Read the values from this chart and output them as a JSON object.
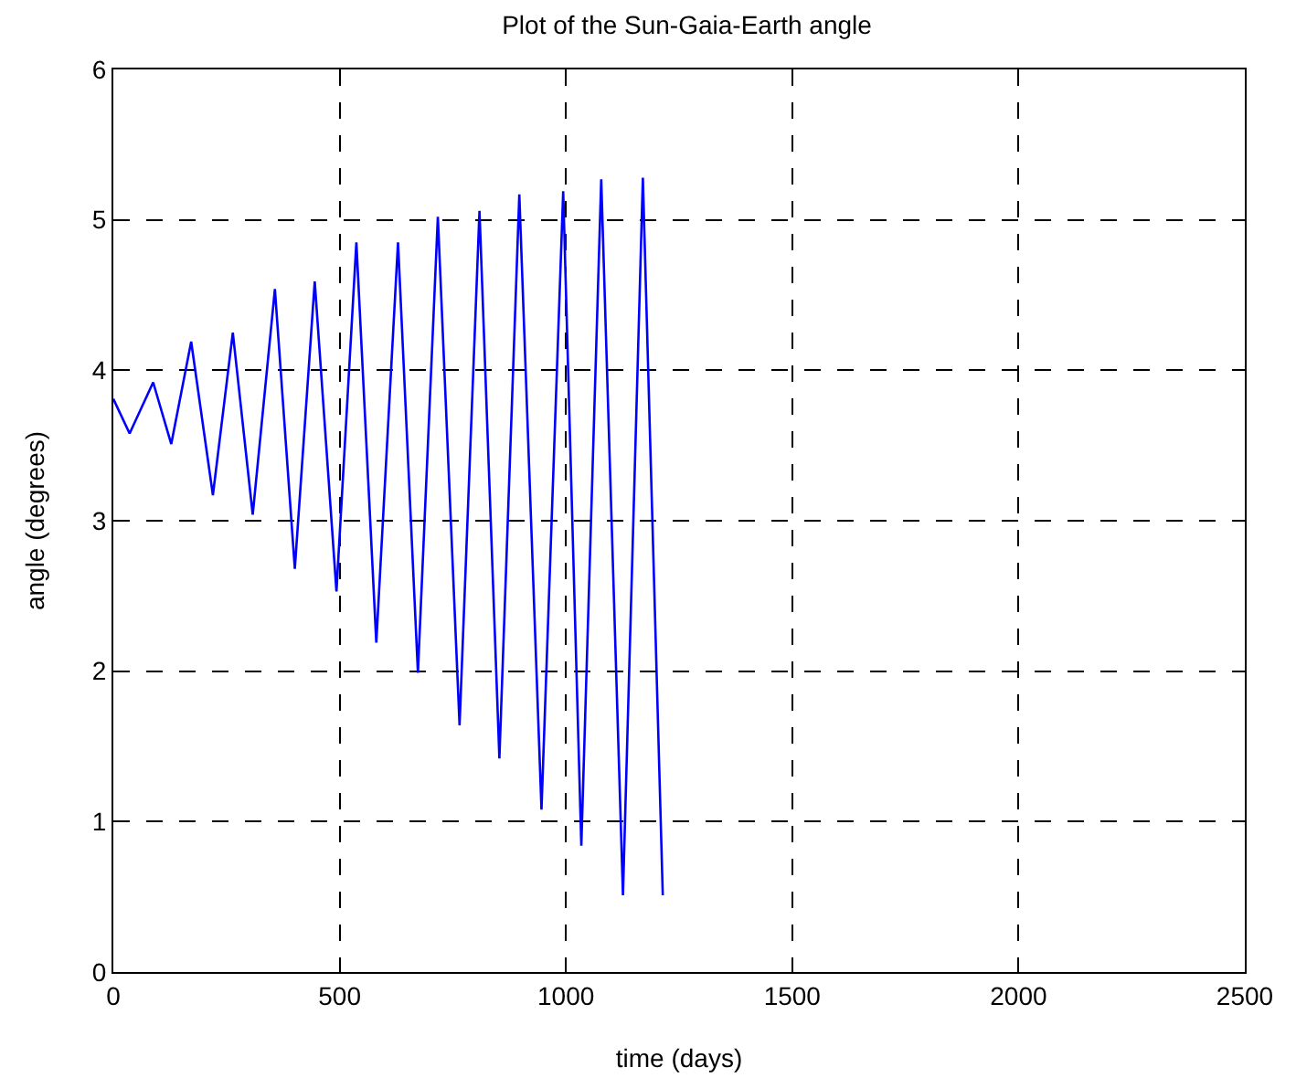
{
  "chart_data": {
    "type": "line",
    "title": "Plot of the Sun-Gaia-Earth angle",
    "xlabel": "time (days)",
    "ylabel": "angle (degrees)",
    "x": [
      0,
      36,
      88,
      128,
      172,
      220,
      264,
      308,
      357,
      401,
      445,
      493,
      537,
      581,
      629,
      673,
      717,
      765,
      809,
      853,
      897,
      946,
      994,
      1034,
      1078,
      1126,
      1170,
      1214
    ],
    "series": [
      {
        "color": "#0000ff",
        "values": [
          3.81,
          3.58,
          3.92,
          3.51,
          4.19,
          3.17,
          4.25,
          3.04,
          4.54,
          2.68,
          4.59,
          2.53,
          4.85,
          2.19,
          4.85,
          1.99,
          5.02,
          1.64,
          5.06,
          1.42,
          5.17,
          1.08,
          5.19,
          0.84,
          5.27,
          0.51,
          5.28,
          0.51
        ]
      }
    ],
    "xlim": [
      0,
      2500
    ],
    "xticks": [
      0,
      500,
      1000,
      1500,
      2000,
      2500
    ],
    "ylim": [
      0,
      6
    ],
    "yticks": [
      0,
      1,
      2,
      3,
      4,
      5,
      6
    ],
    "grid": true,
    "marker": "none",
    "line_style": "solid"
  }
}
